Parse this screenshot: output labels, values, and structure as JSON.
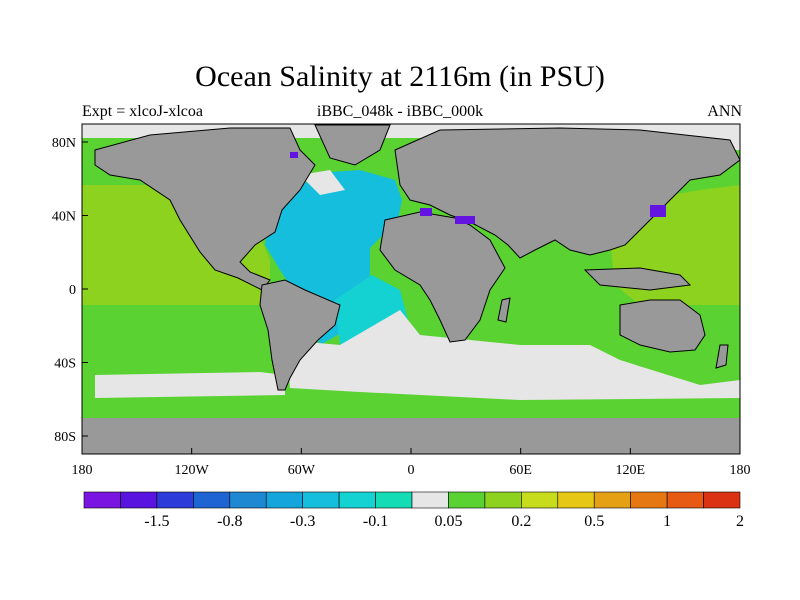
{
  "title": "Ocean Salinity at 2116m (in PSU)",
  "subtitle": "iBBC_048k - iBBC_000k",
  "left_label": "Expt = xlcoJ-xlcoa",
  "right_label": "ANN",
  "lat_ticks": [
    "80N",
    "40N",
    "0",
    "40S",
    "80S"
  ],
  "lon_ticks": [
    "180",
    "120W",
    "60W",
    "0",
    "60E",
    "120E",
    "180"
  ],
  "colorbar": {
    "colors": [
      "#7a14e0",
      "#5a14e0",
      "#2d3cd8",
      "#1e64d2",
      "#1e88d2",
      "#14a5dc",
      "#14bedc",
      "#14d2d2",
      "#14dcb4",
      "#e6e6e6",
      "#5ad232",
      "#8cd21e",
      "#c8dc1e",
      "#e6c814",
      "#e6a014",
      "#e67814",
      "#e65a14",
      "#dc3214"
    ],
    "labels": [
      "-1.5",
      "-0.8",
      "-0.3",
      "-0.1",
      "0.05",
      "0.2",
      "0.5",
      "1",
      "2"
    ]
  },
  "colors": {
    "land": "#999999",
    "ice": "#e6e6e6",
    "pacific": "#8cd21e",
    "southern": "#5ad232",
    "atlantic": "#14bedc",
    "atlantic_deep": "#14d2d2",
    "neg_purple": "#6414e0"
  }
}
